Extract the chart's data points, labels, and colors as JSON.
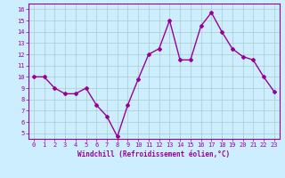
{
  "x": [
    0,
    1,
    2,
    3,
    4,
    5,
    6,
    7,
    8,
    9,
    10,
    11,
    12,
    13,
    14,
    15,
    16,
    17,
    18,
    19,
    20,
    21,
    22,
    23
  ],
  "y": [
    10,
    10,
    9,
    8.5,
    8.5,
    9,
    7.5,
    6.5,
    4.7,
    7.5,
    9.8,
    12,
    12.5,
    15,
    11.5,
    11.5,
    14.5,
    15.7,
    14,
    12.5,
    11.8,
    11.5,
    10,
    8.7
  ],
  "line_color": "#990099",
  "marker": "D",
  "marker_size": 2.0,
  "background_color": "#cceeff",
  "grid_color": "#aacccc",
  "xlabel": "Windchill (Refroidissement éolien,°C)",
  "xlabel_color": "#990099",
  "ylabel_ticks": [
    5,
    6,
    7,
    8,
    9,
    10,
    11,
    12,
    13,
    14,
    15,
    16
  ],
  "xlim": [
    -0.5,
    23.5
  ],
  "ylim": [
    4.5,
    16.5
  ],
  "tick_color": "#990099",
  "tick_label_color": "#990099",
  "font_family": "monospace",
  "tick_fontsize": 5.0,
  "xlabel_fontsize": 5.5,
  "linewidth": 1.0
}
